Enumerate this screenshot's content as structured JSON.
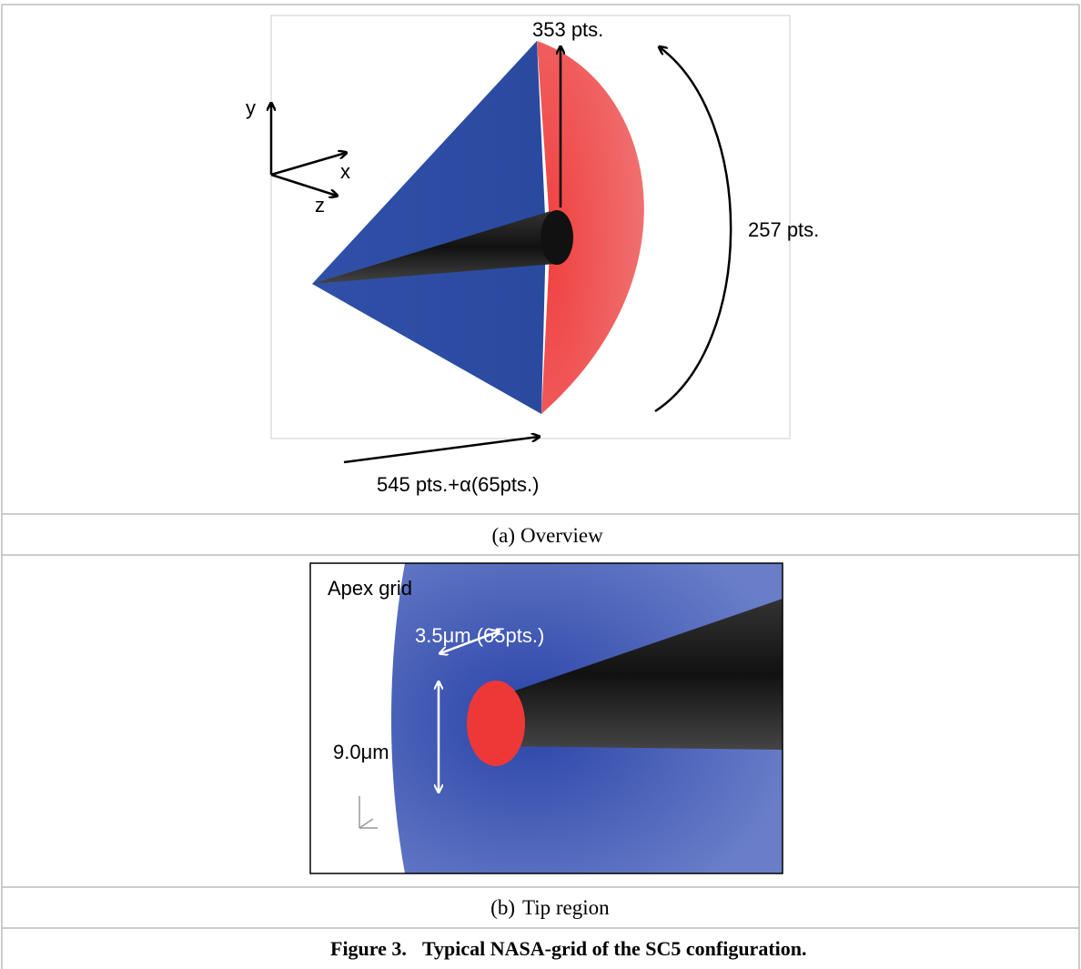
{
  "panels": [
    {
      "labels": {
        "axis_y": "y",
        "axis_x": "x",
        "axis_z": "z",
        "top": "353 pts.",
        "right": "257 pts.",
        "bottom": "545 pts.+α(65pts.)"
      },
      "caption": {
        "letter": "(a)",
        "text": "Overview"
      }
    },
    {
      "labels": {
        "title": "Apex grid",
        "width": "3.5μm (65pts.)",
        "height": "9.0μm"
      },
      "caption": {
        "letter": "(b)",
        "text": "Tip region"
      }
    }
  ],
  "figure_caption": {
    "number": "Figure 3.",
    "text": "Typical NASA-grid of the SC5 configuration."
  }
}
